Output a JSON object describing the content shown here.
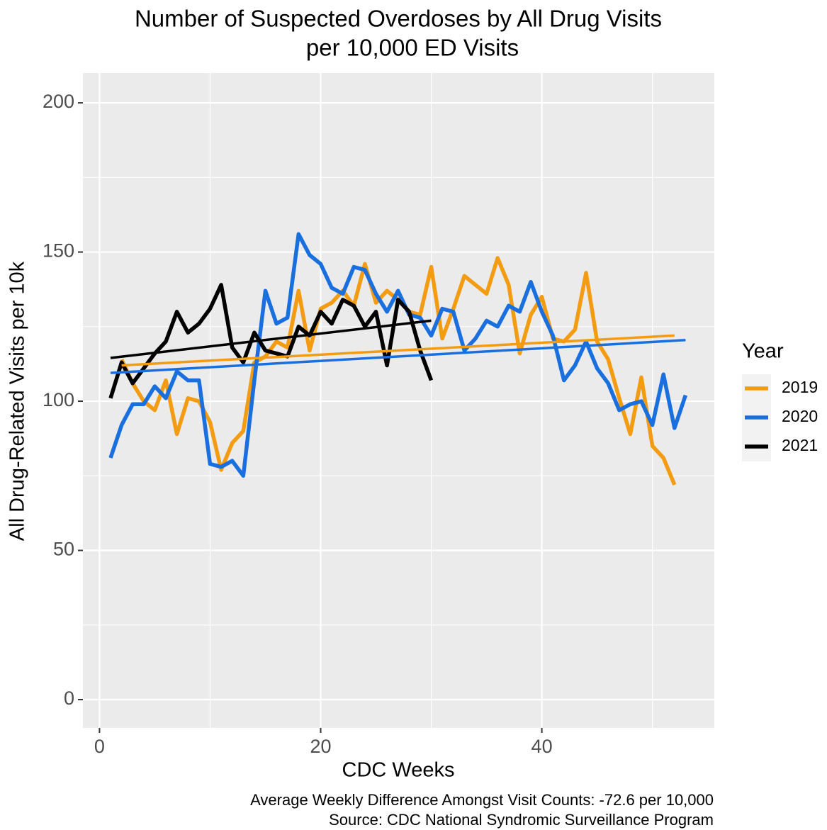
{
  "chart_data": {
    "type": "line",
    "title": [
      "Number of Suspected Overdoses by All Drug Visits",
      "per 10,000 ED Visits"
    ],
    "x_label": "CDC Weeks",
    "y_label": "All Drug-Related Visits per 10k",
    "caption": [
      "Average Weekly Difference Amongst Visit Counts: -72.6 per 10,000",
      "Source: CDC National Syndromic Surveillance Program"
    ],
    "legend_title": "Year",
    "xlim": [
      -1.5,
      55.6
    ],
    "ylim": [
      -9.5,
      210
    ],
    "xticks": [
      0,
      20,
      40
    ],
    "yticks": [
      0,
      50,
      100,
      150,
      200
    ],
    "x_minor_grid": [
      10,
      30,
      50
    ],
    "y_minor_grid": [
      25,
      75,
      125,
      175
    ],
    "grid": true,
    "series": [
      {
        "name": "2019",
        "color": "#f39c12",
        "x": [
          2,
          3,
          4,
          5,
          6,
          7,
          8,
          9,
          10,
          11,
          12,
          13,
          14,
          15,
          16,
          17,
          18,
          19,
          20,
          21,
          22,
          23,
          24,
          25,
          26,
          27,
          28,
          29,
          30,
          31,
          32,
          33,
          34,
          35,
          36,
          37,
          38,
          39,
          40,
          41,
          42,
          43,
          44,
          45,
          46,
          47,
          48,
          49,
          50,
          51,
          52
        ],
        "values": [
          114,
          106,
          100,
          97,
          107,
          89,
          101,
          100,
          93,
          77,
          86,
          90,
          113,
          115,
          120,
          118,
          137,
          117,
          131,
          133,
          137,
          132,
          146,
          133,
          137,
          134,
          130,
          129,
          145,
          121,
          131,
          142,
          139,
          136,
          148,
          139,
          116,
          129,
          135,
          121,
          120,
          124,
          143,
          120,
          114,
          101,
          89,
          108,
          85,
          81,
          72
        ],
        "trend": {
          "x": [
            2,
            52
          ],
          "values": [
            112,
            122
          ]
        }
      },
      {
        "name": "2020",
        "color": "#1a6fdf",
        "x": [
          1,
          2,
          3,
          4,
          5,
          6,
          7,
          8,
          9,
          10,
          11,
          12,
          13,
          14,
          15,
          16,
          17,
          18,
          19,
          20,
          21,
          22,
          23,
          24,
          25,
          26,
          27,
          28,
          29,
          30,
          31,
          32,
          33,
          34,
          35,
          36,
          37,
          38,
          39,
          40,
          41,
          42,
          43,
          44,
          45,
          46,
          47,
          48,
          49,
          50,
          51,
          52,
          53
        ],
        "values": [
          81,
          92,
          99,
          99,
          105,
          101,
          110,
          107,
          107,
          79,
          78,
          80,
          75,
          107,
          137,
          126,
          128,
          156,
          149,
          146,
          138,
          136,
          145,
          144,
          136,
          130,
          137,
          129,
          128,
          122,
          131,
          130,
          117,
          121,
          127,
          125,
          132,
          130,
          140,
          130,
          122,
          107,
          112,
          120,
          111,
          106,
          97,
          99,
          100,
          92,
          109,
          91,
          102
        ],
        "trend": {
          "x": [
            1,
            53
          ],
          "values": [
            109.5,
            120.5
          ]
        }
      },
      {
        "name": "2021",
        "color": "#000000",
        "x": [
          1,
          2,
          3,
          4,
          5,
          6,
          7,
          8,
          9,
          10,
          11,
          12,
          13,
          14,
          15,
          16,
          17,
          18,
          19,
          20,
          21,
          22,
          23,
          24,
          25,
          26,
          27,
          28,
          29,
          30
        ],
        "values": [
          101,
          113,
          106,
          111,
          116,
          120,
          130,
          123,
          126,
          131,
          139,
          118,
          113,
          123,
          117,
          116,
          115,
          125,
          122,
          130,
          126,
          134,
          132,
          125,
          130,
          112,
          134,
          130,
          117,
          107
        ],
        "trend": {
          "x": [
            1,
            30
          ],
          "values": [
            114.5,
            127
          ]
        }
      }
    ]
  }
}
